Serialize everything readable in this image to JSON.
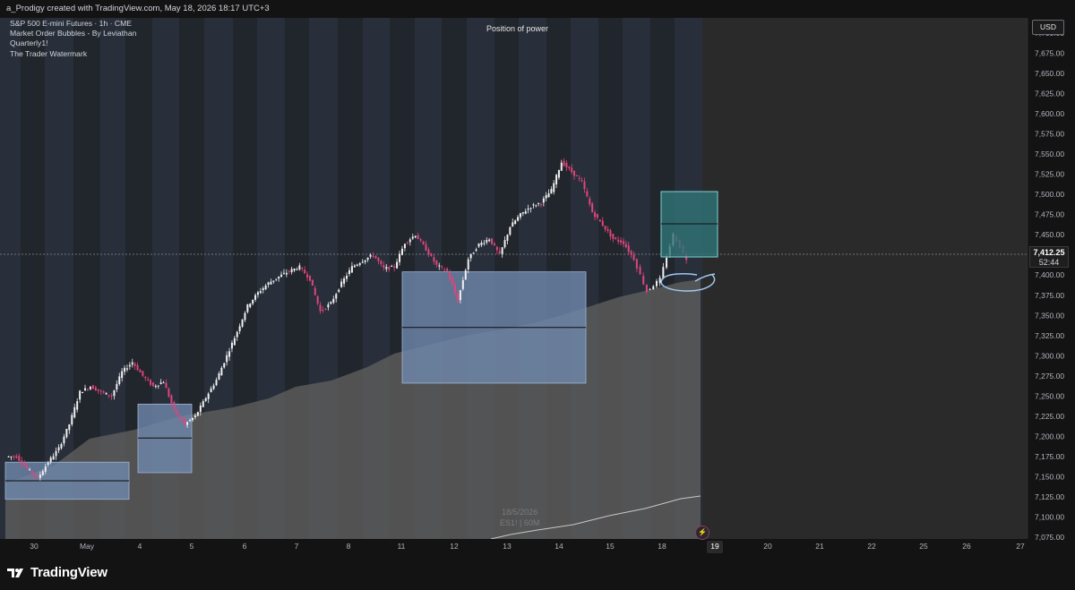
{
  "header": {
    "credit": "a_Prodigy created with TradingView.com, May 18, 2026 18:17 UTC+3"
  },
  "legend": {
    "symbol_line": "S&P 500 E-mini Futures · 1h · CME",
    "indicators": [
      "Market Order Bubbles - By Leviathan",
      "Quarterly1!",
      "The Trader Watermark"
    ]
  },
  "annotation": {
    "position_of_power": "Position of power"
  },
  "price_axis": {
    "currency": "USD",
    "ticks": [
      "7,700.00",
      "7,675.00",
      "7,650.00",
      "7,625.00",
      "7,600.00",
      "7,575.00",
      "7,550.00",
      "7,525.00",
      "7,500.00",
      "7,475.00",
      "7,450.00",
      "7,425.00",
      "7,400.00",
      "7,375.00",
      "7,350.00",
      "7,325.00",
      "7,300.00",
      "7,275.00",
      "7,250.00",
      "7,225.00",
      "7,200.00",
      "7,175.00",
      "7,150.00",
      "7,125.00",
      "7,100.00",
      "7,075.00"
    ],
    "current_price": "7,412.25",
    "countdown": "52:44"
  },
  "time_axis": {
    "labels": [
      "30",
      "May",
      "4",
      "5",
      "6",
      "7",
      "8",
      "11",
      "12",
      "13",
      "14",
      "15",
      "18",
      "19",
      "20",
      "21",
      "22",
      "25",
      "26",
      "27"
    ],
    "highlighted": "19"
  },
  "watermark": {
    "date": "18/5/2026",
    "symbol": "ES1! | 60M"
  },
  "footer": {
    "brand": "TradingView"
  },
  "colors": {
    "background": "#131313",
    "candle_up": "#ffffff",
    "candle_down": "#e0457b",
    "zone_fill": "#5b7396",
    "teal_box": "#2f6f73",
    "night_band": "#2a3140"
  },
  "chart_data": {
    "type": "candlestick",
    "instrument": "S&P 500 E-mini Futures",
    "interval": "1h",
    "ylim": [
      7060,
      7715
    ],
    "path_points": [
      [
        "30",
        7175
      ],
      [
        "30",
        7160
      ],
      [
        "30",
        7148
      ],
      [
        "30",
        7168
      ],
      [
        "30",
        7185
      ],
      [
        "May",
        7215
      ],
      [
        "May",
        7255
      ],
      [
        "May",
        7262
      ],
      [
        "May",
        7255
      ],
      [
        "May",
        7250
      ],
      [
        "4",
        7280
      ],
      [
        "4",
        7292
      ],
      [
        "4",
        7275
      ],
      [
        "4",
        7262
      ],
      [
        "4",
        7268
      ],
      [
        "5",
        7232
      ],
      [
        "5",
        7215
      ],
      [
        "5",
        7225
      ],
      [
        "5",
        7248
      ],
      [
        "5",
        7270
      ],
      [
        "6",
        7300
      ],
      [
        "6",
        7330
      ],
      [
        "6",
        7362
      ],
      [
        "6",
        7378
      ],
      [
        "6",
        7390
      ],
      [
        "7",
        7398
      ],
      [
        "7",
        7405
      ],
      [
        "7",
        7410
      ],
      [
        "7",
        7395
      ],
      [
        "7",
        7355
      ],
      [
        "8",
        7365
      ],
      [
        "8",
        7390
      ],
      [
        "8",
        7410
      ],
      [
        "8",
        7418
      ],
      [
        "8",
        7425
      ],
      [
        "11",
        7408
      ],
      [
        "11",
        7410
      ],
      [
        "11",
        7440
      ],
      [
        "11",
        7450
      ],
      [
        "11",
        7432
      ],
      [
        "12",
        7412
      ],
      [
        "12",
        7405
      ],
      [
        "12",
        7368
      ],
      [
        "12",
        7420
      ],
      [
        "12",
        7438
      ],
      [
        "13",
        7445
      ],
      [
        "13",
        7425
      ],
      [
        "13",
        7460
      ],
      [
        "13",
        7475
      ],
      [
        "13",
        7485
      ],
      [
        "14",
        7490
      ],
      [
        "14",
        7505
      ],
      [
        "14",
        7540
      ],
      [
        "14",
        7528
      ],
      [
        "14",
        7515
      ],
      [
        "15",
        7478
      ],
      [
        "15",
        7462
      ],
      [
        "15",
        7445
      ],
      [
        "15",
        7440
      ],
      [
        "15",
        7420
      ],
      [
        "18",
        7380
      ],
      [
        "18",
        7395
      ],
      [
        "18",
        7450
      ],
      [
        "18",
        7420
      ]
    ],
    "zones": [
      {
        "from": "30",
        "to": "4",
        "low": 7122,
        "high": 7168,
        "mid": 7145
      },
      {
        "from": "4",
        "to": "5",
        "low": 7155,
        "high": 7240,
        "mid": 7198
      },
      {
        "from": "11",
        "to": "15",
        "low": 7266,
        "high": 7404,
        "mid": 7335
      }
    ],
    "teal_box": {
      "from": "18",
      "to": "19",
      "low": 7408,
      "high": 7490,
      "mid": 7449
    },
    "current_price": 7412.25
  }
}
